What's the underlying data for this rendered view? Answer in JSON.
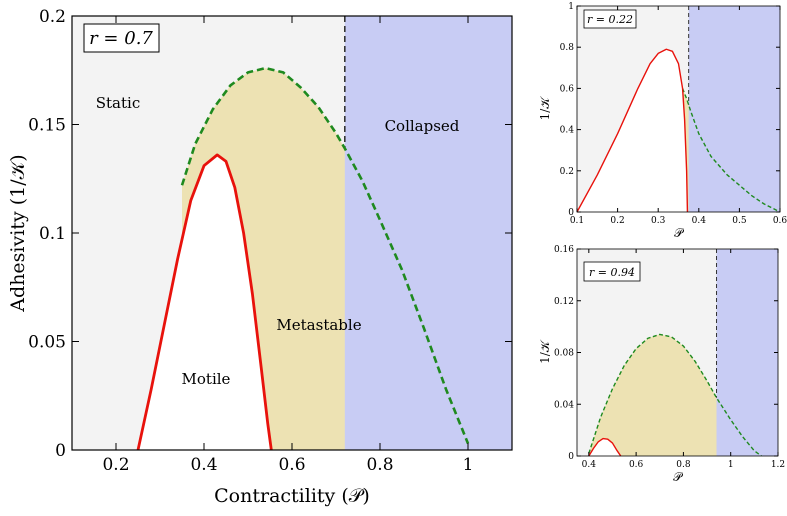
{
  "colors": {
    "static": "#f3f3f3",
    "metastable": "#ede2b3",
    "collapsed": "#c8ccf4",
    "motile": "#ffffff",
    "red_curve": "#e8120c",
    "green_curve": "#1f8a1f",
    "divider": "#333333"
  },
  "chart_data": [
    {
      "type": "area",
      "panel": "main",
      "annotation_box": "r = 0.7",
      "xlabel": "Contractility (𝒫)",
      "ylabel": "Adhesivity (1/𝒦)",
      "xlim": [
        0.1,
        1.1
      ],
      "ylim": [
        0,
        0.2
      ],
      "x_ticks": [
        0.2,
        0.4,
        0.6,
        0.8,
        1
      ],
      "x_tick_labels": [
        "0.2",
        "0.4",
        "0.6",
        "0.8",
        "1"
      ],
      "y_ticks": [
        0,
        0.05,
        0.1,
        0.15,
        0.2
      ],
      "y_tick_labels": [
        "0",
        "0.05",
        "0.1",
        "0.15",
        "0.2"
      ],
      "region_labels": {
        "static": "Static",
        "collapsed": "Collapsed",
        "metastable": "Metastable",
        "motile": "Motile"
      },
      "collapse_threshold_x": 0.72,
      "green_curve": {
        "x": [
          0.35,
          0.38,
          0.42,
          0.46,
          0.5,
          0.54,
          0.58,
          0.62,
          0.66,
          0.7,
          0.72,
          0.76,
          0.8,
          0.85,
          0.9,
          0.95,
          1.0
        ],
        "y": [
          0.122,
          0.141,
          0.157,
          0.168,
          0.174,
          0.176,
          0.174,
          0.167,
          0.158,
          0.146,
          0.139,
          0.124,
          0.106,
          0.083,
          0.056,
          0.028,
          0.003
        ]
      },
      "red_curve": {
        "x": [
          0.25,
          0.28,
          0.31,
          0.34,
          0.37,
          0.4,
          0.43,
          0.45,
          0.47,
          0.49,
          0.51,
          0.53,
          0.545,
          0.553
        ],
        "y": [
          0.0,
          0.028,
          0.058,
          0.088,
          0.115,
          0.131,
          0.136,
          0.133,
          0.121,
          0.1,
          0.072,
          0.038,
          0.012,
          0.0
        ]
      }
    },
    {
      "type": "area",
      "panel": "top-right",
      "annotation_box": "r = 0.22",
      "xlabel": "𝒫",
      "ylabel": "1/𝒦",
      "xlim": [
        0.1,
        0.6
      ],
      "ylim": [
        0,
        1
      ],
      "x_ticks": [
        0.1,
        0.2,
        0.3,
        0.4,
        0.5,
        0.6
      ],
      "x_tick_labels": [
        "0.1",
        "0.2",
        "0.3",
        "0.4",
        "0.5",
        "0.6"
      ],
      "y_ticks": [
        0,
        0.2,
        0.4,
        0.6,
        0.8,
        1
      ],
      "y_tick_labels": [
        "0",
        "0.2",
        "0.4",
        "0.6",
        "0.8",
        "1"
      ],
      "collapse_threshold_x": 0.375,
      "red_curve": {
        "x": [
          0.1,
          0.15,
          0.2,
          0.25,
          0.28,
          0.3,
          0.32,
          0.335,
          0.35,
          0.36,
          0.365,
          0.37,
          0.372
        ],
        "y": [
          0.0,
          0.18,
          0.38,
          0.6,
          0.72,
          0.77,
          0.79,
          0.78,
          0.72,
          0.6,
          0.45,
          0.2,
          0.0
        ]
      },
      "green_curve": {
        "x": [
          0.36,
          0.37,
          0.38,
          0.4,
          0.43,
          0.47,
          0.5,
          0.53,
          0.56,
          0.6
        ],
        "y": [
          0.6,
          0.55,
          0.49,
          0.38,
          0.27,
          0.18,
          0.13,
          0.08,
          0.04,
          0.0
        ]
      }
    },
    {
      "type": "area",
      "panel": "bottom-right",
      "annotation_box": "r = 0.94",
      "xlabel": "𝒫",
      "ylabel": "1/𝒦",
      "xlim": [
        0.35,
        1.2
      ],
      "ylim": [
        0,
        0.16
      ],
      "x_ticks": [
        0.4,
        0.6,
        0.8,
        1,
        1.2
      ],
      "x_tick_labels": [
        "0.4",
        "0.6",
        "0.8",
        "1",
        "1.2"
      ],
      "y_ticks": [
        0,
        0.04,
        0.08,
        0.12,
        0.16
      ],
      "y_tick_labels": [
        "0",
        "0.04",
        "0.08",
        "0.12",
        "0.16"
      ],
      "collapse_threshold_x": 0.94,
      "green_curve": {
        "x": [
          0.4,
          0.45,
          0.5,
          0.55,
          0.6,
          0.65,
          0.7,
          0.75,
          0.8,
          0.85,
          0.9,
          0.94,
          1.0,
          1.05,
          1.1,
          1.13
        ],
        "y": [
          0.002,
          0.03,
          0.052,
          0.07,
          0.083,
          0.091,
          0.094,
          0.092,
          0.085,
          0.073,
          0.058,
          0.045,
          0.028,
          0.015,
          0.004,
          0.0
        ]
      },
      "red_curve": {
        "x": [
          0.4,
          0.42,
          0.44,
          0.46,
          0.48,
          0.5,
          0.52,
          0.535
        ],
        "y": [
          0.0,
          0.006,
          0.011,
          0.0135,
          0.013,
          0.01,
          0.004,
          0.0
        ]
      }
    }
  ]
}
